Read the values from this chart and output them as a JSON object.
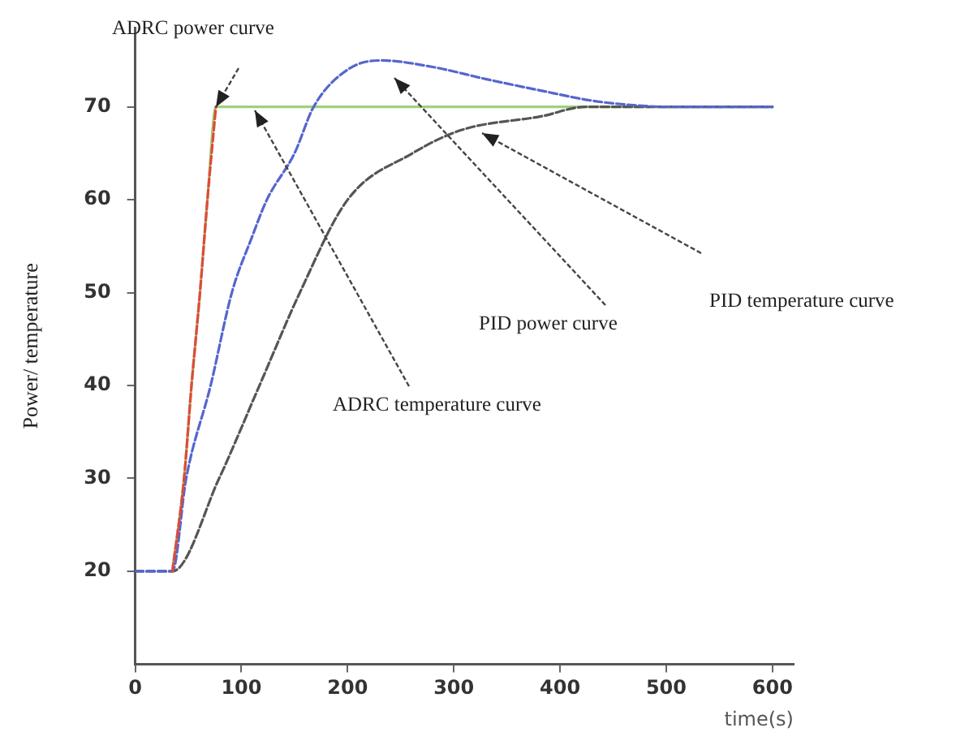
{
  "chart_data": {
    "type": "line",
    "xlabel": "time(s)",
    "ylabel": "Power/ temperature",
    "xlim": [
      0,
      620
    ],
    "xticks": [
      0,
      100,
      200,
      300,
      400,
      500,
      600
    ],
    "ylim": [
      10,
      78.5
    ],
    "yticks": [
      20,
      30,
      40,
      50,
      60,
      70
    ],
    "grid": false,
    "legend": false,
    "marker": "none",
    "series": [
      {
        "color": "#9fd07a",
        "line_style": "solid",
        "x": [
          35,
          46,
          53,
          61,
          68,
          76,
          600
        ],
        "values": [
          20,
          30,
          40,
          50,
          60,
          70,
          70
        ]
      },
      {
        "color": "#555555",
        "line_style": "dashed",
        "x": [
          0,
          35,
          79,
          117,
          155,
          200,
          261,
          307,
          383,
          424,
          600
        ],
        "values": [
          20,
          20,
          30,
          40,
          50,
          60,
          65,
          67.5,
          69,
          70,
          70
        ]
      },
      {
        "color": "#5566cc",
        "line_style": "dashed",
        "x": [
          0,
          35,
          48,
          71,
          91,
          110,
          124,
          150,
          168,
          200,
          231,
          280,
          330,
          380,
          434,
          480,
          500,
          600
        ],
        "values": [
          20,
          20,
          30,
          40,
          50,
          56,
          60,
          65,
          70,
          74,
          75,
          74.3,
          73,
          71.8,
          70.6,
          70.1,
          70,
          70
        ]
      },
      {
        "color": "#e04a3a",
        "line_style": "dashed",
        "x": [
          35,
          46,
          53,
          61,
          68,
          76
        ],
        "values": [
          20,
          30,
          40,
          50,
          60,
          70
        ]
      }
    ],
    "annotations": [
      "ADRC power curve",
      "ADRC temperature curve",
      "PID power curve",
      "PID temperature curve"
    ]
  }
}
